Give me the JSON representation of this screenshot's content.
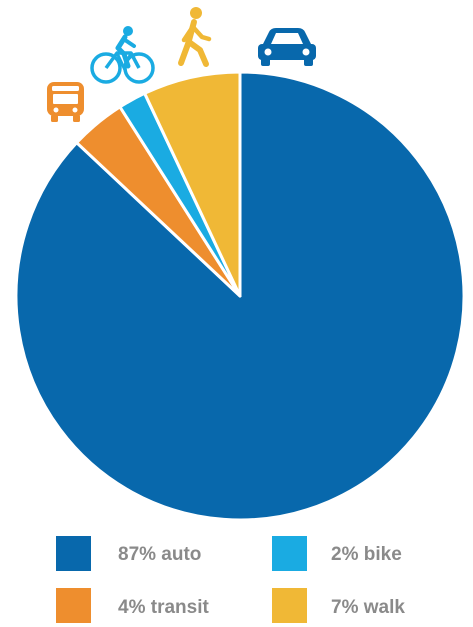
{
  "chart_data": {
    "type": "pie",
    "title": "",
    "categories": [
      "auto",
      "transit",
      "bike",
      "walk"
    ],
    "values": [
      87,
      4,
      2,
      7
    ],
    "unit": "%",
    "colors": [
      "#0868ac",
      "#ee8e2e",
      "#1aabe2",
      "#f0b836"
    ],
    "icons": [
      "car-icon",
      "bus-icon",
      "bicycle-icon",
      "pedestrian-icon"
    ],
    "legend": {
      "placement": "bottom",
      "entries": [
        {
          "label": "87% auto",
          "color": "#0868ac"
        },
        {
          "label": "2% bike",
          "color": "#1aabe2"
        },
        {
          "label": "4% transit",
          "color": "#ee8e2e"
        },
        {
          "label": "7% walk",
          "color": "#f0b836"
        }
      ]
    }
  }
}
